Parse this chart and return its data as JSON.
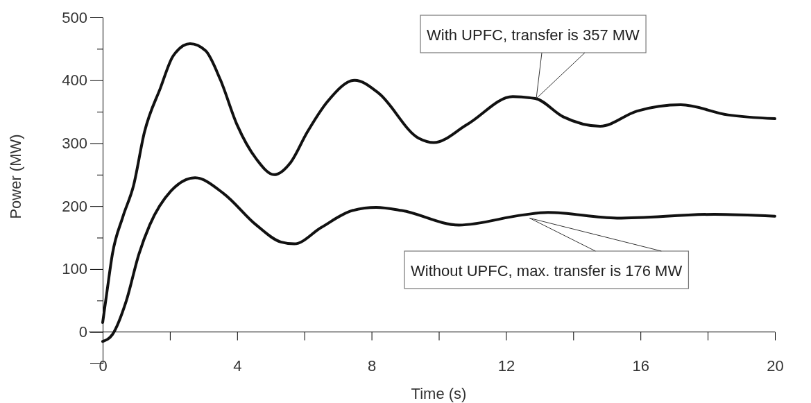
{
  "chart_data": {
    "type": "line",
    "xlabel": "Time (s)",
    "ylabel": "Power (MW)",
    "xlim": [
      0,
      20
    ],
    "ylim": [
      -50,
      500
    ],
    "xticks": [
      0,
      {
        "value": 2,
        "label": null
      },
      4,
      {
        "value": 6,
        "label": null
      },
      8,
      {
        "value": 10,
        "label": null
      },
      12,
      {
        "value": 14,
        "label": null
      },
      16,
      {
        "value": 18,
        "label": null
      },
      20
    ],
    "yticks": [
      {
        "value": -50,
        "label": null
      },
      0,
      {
        "value": 50,
        "label": null
      },
      100,
      {
        "value": 150,
        "label": null
      },
      200,
      {
        "value": 250,
        "label": null
      },
      300,
      {
        "value": 350,
        "label": null
      },
      400,
      {
        "value": 450,
        "label": null
      },
      500
    ],
    "grid": false,
    "marker": "none",
    "line_style": "solid",
    "series": [
      {
        "color": "#111111",
        "x": [
          0,
          0.13,
          0.29,
          0.6,
          0.92,
          1.24,
          1.72,
          2.1,
          2.6,
          3.06,
          3.5,
          4.0,
          4.57,
          5.1,
          5.6,
          6.08,
          6.7,
          7.5,
          8.2,
          9.4,
          9.85,
          10.85,
          12.2,
          12.87,
          13.7,
          14.8,
          15.9,
          17.2,
          18.6,
          20
        ],
        "values": [
          15,
          65,
          124,
          183,
          233,
          317,
          388,
          439,
          458,
          447,
          401,
          329,
          275,
          250,
          270,
          317,
          367,
          400,
          380,
          308,
          301,
          330,
          374,
          371,
          342,
          327,
          351,
          361,
          345,
          339
        ]
      },
      {
        "color": "#111111",
        "x": [
          0,
          0.29,
          0.7,
          1.08,
          1.4,
          2.03,
          2.75,
          3.6,
          4.57,
          5.3,
          5.7,
          6.5,
          7.43,
          8.14,
          8.9,
          10.6,
          12.5,
          13.25,
          15.3,
          18.2,
          20
        ],
        "values": [
          -15,
          -4,
          49,
          124,
          170,
          224,
          245,
          220,
          170,
          143,
          140,
          166,
          193,
          198,
          193,
          170,
          186,
          190,
          181,
          187,
          184
        ]
      }
    ],
    "annotations": [
      {
        "text": "With UPFC, transfer is 357 MW",
        "x": 12.9,
        "y": 371
      },
      {
        "text": "Without UPFC, max. transfer is 176 MW",
        "x": 12.7,
        "y": 181
      }
    ]
  }
}
